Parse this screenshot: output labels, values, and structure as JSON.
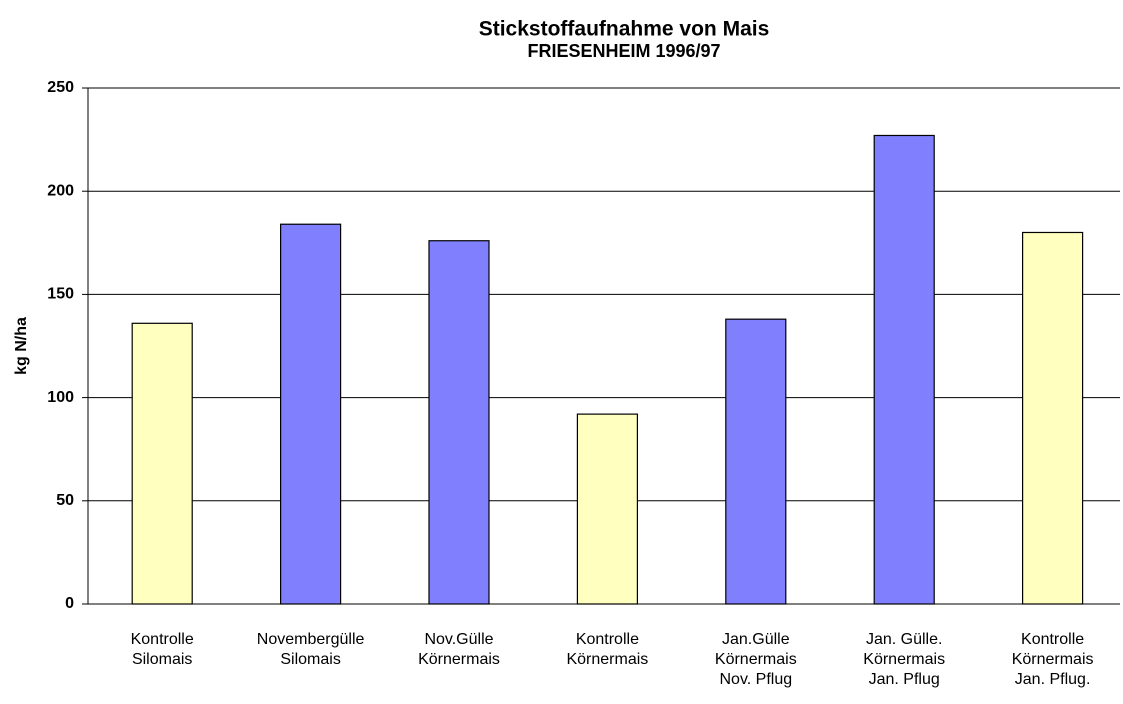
{
  "chart_data": {
    "type": "bar",
    "title": "Stickstoffaufnahme von Mais",
    "subtitle": "FRIESENHEIM 1996/97",
    "y_label": "kg N/ha",
    "categories": [
      [
        "Kontrolle",
        "Silomais"
      ],
      [
        "Novembergülle",
        "Silomais"
      ],
      [
        "Nov.Gülle",
        "Körnermais"
      ],
      [
        "Kontrolle",
        "Körnermais"
      ],
      [
        "Jan.Gülle",
        "Körnermais",
        "Nov. Pflug"
      ],
      [
        "Jan. Gülle.",
        "Körnermais",
        "Jan. Pflug"
      ],
      [
        "Kontrolle",
        "Körnermais",
        "Jan. Pflug."
      ]
    ],
    "values": [
      136,
      184,
      176,
      92,
      138,
      227,
      180
    ],
    "colors": [
      "#ffffc0",
      "#8080ff",
      "#8080ff",
      "#ffffc0",
      "#8080ff",
      "#8080ff",
      "#ffffc0"
    ],
    "ylim": [
      0,
      250
    ],
    "yticks": [
      0,
      50,
      100,
      150,
      200,
      250
    ],
    "grid": true
  }
}
